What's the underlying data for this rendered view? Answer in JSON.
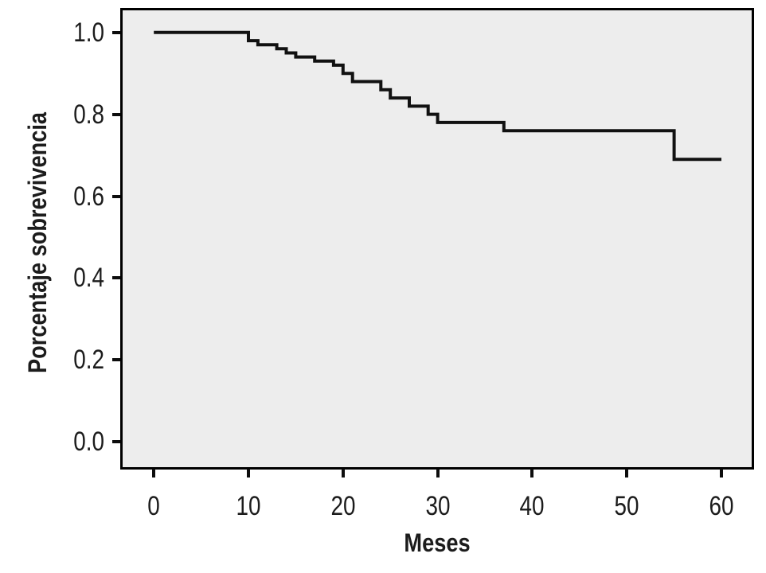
{
  "chart_data": {
    "type": "line",
    "variant": "kaplan-meier-step-survival",
    "title": "",
    "xlabel": "Meses",
    "ylabel": "Porcentaje sobrevivencia",
    "xlim": [
      -3.3,
      63.2
    ],
    "ylim": [
      -0.062,
      1.054
    ],
    "grid": false,
    "legend": null,
    "xticks": {
      "values": [
        0,
        10,
        20,
        30,
        40,
        50,
        60
      ],
      "labels": [
        "0",
        "10",
        "20",
        "30",
        "40",
        "50",
        "60"
      ]
    },
    "yticks": {
      "values": [
        0.0,
        0.2,
        0.4,
        0.6,
        0.8,
        1.0
      ],
      "labels": [
        "0.0",
        "0.2",
        "0.4",
        "0.6",
        "0.8",
        "1.0"
      ]
    },
    "series": [
      {
        "name": "sobrevivencia",
        "step": true,
        "color": "#111111",
        "stroke_width": 4,
        "points": [
          [
            0,
            1.0
          ],
          [
            10,
            0.98
          ],
          [
            11,
            0.97
          ],
          [
            13,
            0.96
          ],
          [
            14,
            0.95
          ],
          [
            15,
            0.94
          ],
          [
            17,
            0.93
          ],
          [
            19,
            0.92
          ],
          [
            20,
            0.9
          ],
          [
            21,
            0.88
          ],
          [
            24,
            0.86
          ],
          [
            25,
            0.84
          ],
          [
            27,
            0.82
          ],
          [
            29,
            0.8
          ],
          [
            30,
            0.78
          ],
          [
            37,
            0.76
          ],
          [
            55,
            0.69
          ],
          [
            60,
            0.69
          ]
        ]
      }
    ],
    "plot_bg": "#ededed",
    "frame_color": "#000000",
    "tick_color": "#0d0d0d",
    "text_color": "#1c1c1c"
  }
}
